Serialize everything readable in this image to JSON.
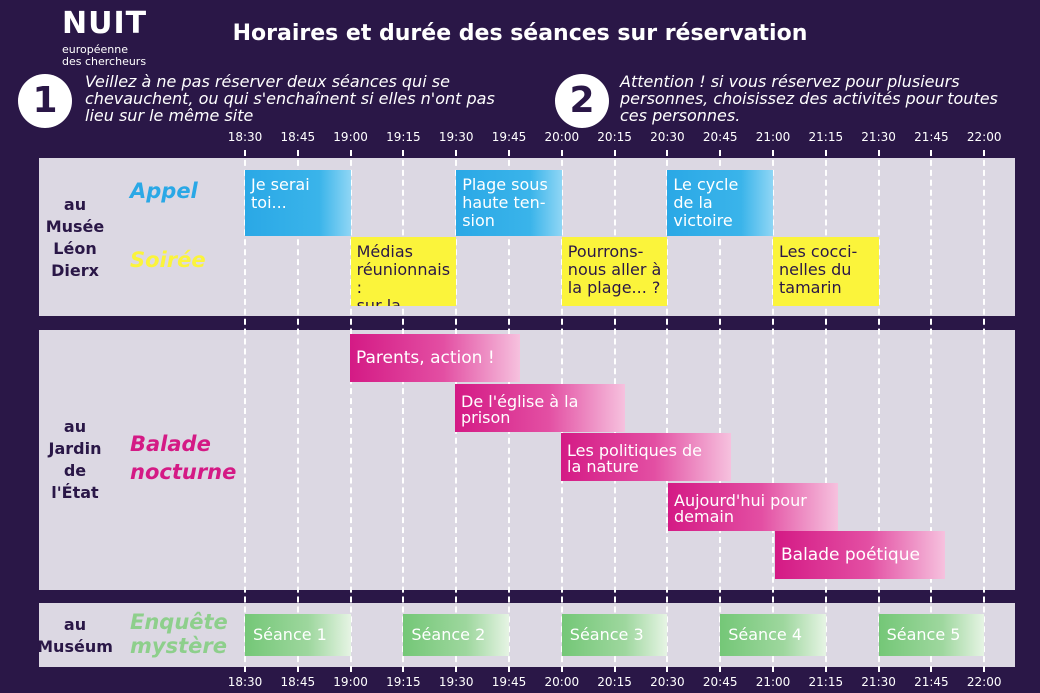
{
  "logo": {
    "main": "NUIT",
    "line1": "européenne",
    "line2": "des chercheurs"
  },
  "title": "Horaires et durée des séances sur réservation",
  "notes": [
    {
      "number": "1",
      "lines": [
        "Veillez à ne pas réserver deux séances qui se",
        "chevauchent, ou qui s'enchaînent si elles n'ont pas",
        "lieu sur le même site"
      ]
    },
    {
      "number": "2",
      "lines": [
        "Attention ! si vous réservez pour plusieurs",
        "personnes, choisissez des activités pour toutes",
        "ces personnes."
      ]
    }
  ],
  "times": [
    "18:30",
    "18:45",
    "19:00",
    "19:15",
    "19:30",
    "19:45",
    "20:00",
    "20:15",
    "20:30",
    "20:45",
    "21:00",
    "21:15",
    "21:30",
    "21:45",
    "22:00"
  ],
  "colors": {
    "background": "#2a1747",
    "panel": "#dcd8e3",
    "appel": "#2aa8e6",
    "soiree": "#fbf43b",
    "balade": "#d41a85",
    "enquete": "#8ecf8c",
    "place": "#2a1747"
  },
  "venues": [
    {
      "name_lines": [
        "au",
        "Musée",
        "Léon",
        "Dierx"
      ],
      "activities": [
        {
          "label": "Appel",
          "color": "#2aa8e6",
          "sessions": [
            {
              "lines": [
                "Je serai",
                "toi..."
              ],
              "start": "18:30",
              "end": "19:00"
            },
            {
              "lines": [
                "Plage sous",
                "haute ten-",
                "sion"
              ],
              "start": "19:30",
              "end": "20:00"
            },
            {
              "lines": [
                "Le cycle",
                "de la",
                "victoire"
              ],
              "start": "20:30",
              "end": "21:00"
            }
          ]
        },
        {
          "label": "Soirée",
          "color": "#fbf43b",
          "sessions": [
            {
              "lines": [
                "Médias",
                "réunionnais :",
                "sur la piste..."
              ],
              "start": "19:00",
              "end": "19:30"
            },
            {
              "lines": [
                "Pourrons-",
                "nous aller à",
                "la plage... ?"
              ],
              "start": "20:00",
              "end": "20:30"
            },
            {
              "lines": [
                "Les cocci-",
                "nelles du",
                "tamarin"
              ],
              "start": "21:00",
              "end": "21:30"
            }
          ]
        }
      ]
    },
    {
      "name_lines": [
        "au",
        "Jardin",
        "de",
        "l'État"
      ],
      "activities": [
        {
          "label_lines": [
            "Balade",
            "nocturne"
          ],
          "color": "#d41a85",
          "sessions": [
            {
              "lines": [
                "Parents, action !"
              ],
              "start": "19:00",
              "end": "19:45"
            },
            {
              "lines": [
                "De l'église à la",
                "prison"
              ],
              "start": "19:30",
              "end": "20:15"
            },
            {
              "lines": [
                "Les politiques de",
                "la nature"
              ],
              "start": "20:00",
              "end": "20:45"
            },
            {
              "lines": [
                "Aujourd'hui pour",
                "demain"
              ],
              "start": "20:30",
              "end": "21:15"
            },
            {
              "lines": [
                "Balade poétique"
              ],
              "start": "21:00",
              "end": "21:45"
            }
          ]
        }
      ]
    },
    {
      "name_lines": [
        "au",
        "Muséum"
      ],
      "activities": [
        {
          "label_lines": [
            "Enquête",
            "mystère"
          ],
          "color": "#8ecf8c",
          "sessions": [
            {
              "lines": [
                "Séance 1"
              ],
              "start": "18:30",
              "end": "19:00"
            },
            {
              "lines": [
                "Séance 2"
              ],
              "start": "19:15",
              "end": "19:45"
            },
            {
              "lines": [
                "Séance 3"
              ],
              "start": "20:00",
              "end": "20:30"
            },
            {
              "lines": [
                "Séance 4"
              ],
              "start": "20:45",
              "end": "21:15"
            },
            {
              "lines": [
                "Séance 5"
              ],
              "start": "21:30",
              "end": "22:00"
            }
          ]
        }
      ]
    }
  ]
}
